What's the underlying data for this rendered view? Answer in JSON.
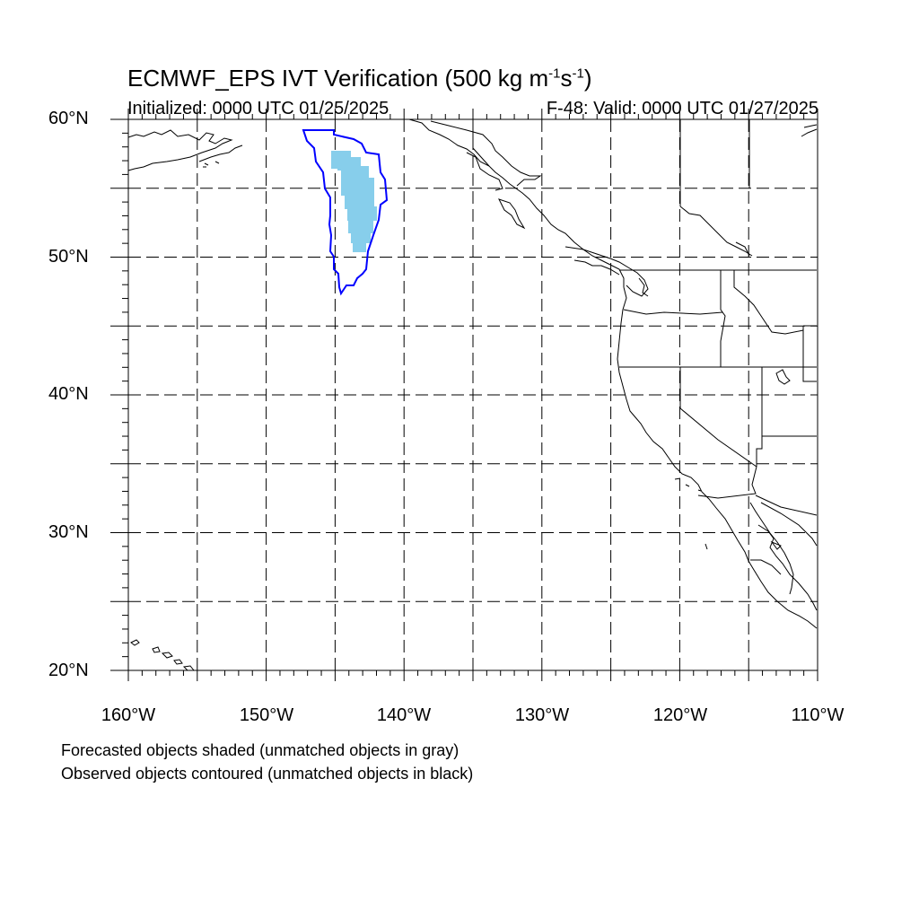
{
  "title": {
    "main": "ECMWF_EPS IVT Verification (500 kg m",
    "unit_exp1": "-1",
    "unit_mid": "s",
    "unit_exp2": "-1",
    "unit_close": ")"
  },
  "subtitle_left": "Initialized: 0000 UTC 01/25/2025",
  "subtitle_right": "F-48: Valid: 0000 UTC 01/27/2025",
  "lat_labels": [
    "60°N",
    "50°N",
    "40°N",
    "30°N",
    "20°N"
  ],
  "lon_labels": [
    "160°W",
    "150°W",
    "140°W",
    "130°W",
    "120°W",
    "110°W"
  ],
  "captions": [
    "Forecasted objects shaded (unmatched objects in gray)",
    "Observed objects contoured (unmatched objects in black)"
  ],
  "colors": {
    "forecast_fill": "#87ceeb",
    "observed_contour": "#0000ff",
    "coastline": "#000000",
    "grid": "#000000"
  },
  "map": {
    "lon_range": [
      -160,
      -110
    ],
    "lat_range": [
      20,
      60
    ],
    "grid_spacing_deg": 5,
    "grid_style": "dashed",
    "projection": "cylindrical equidistant"
  }
}
